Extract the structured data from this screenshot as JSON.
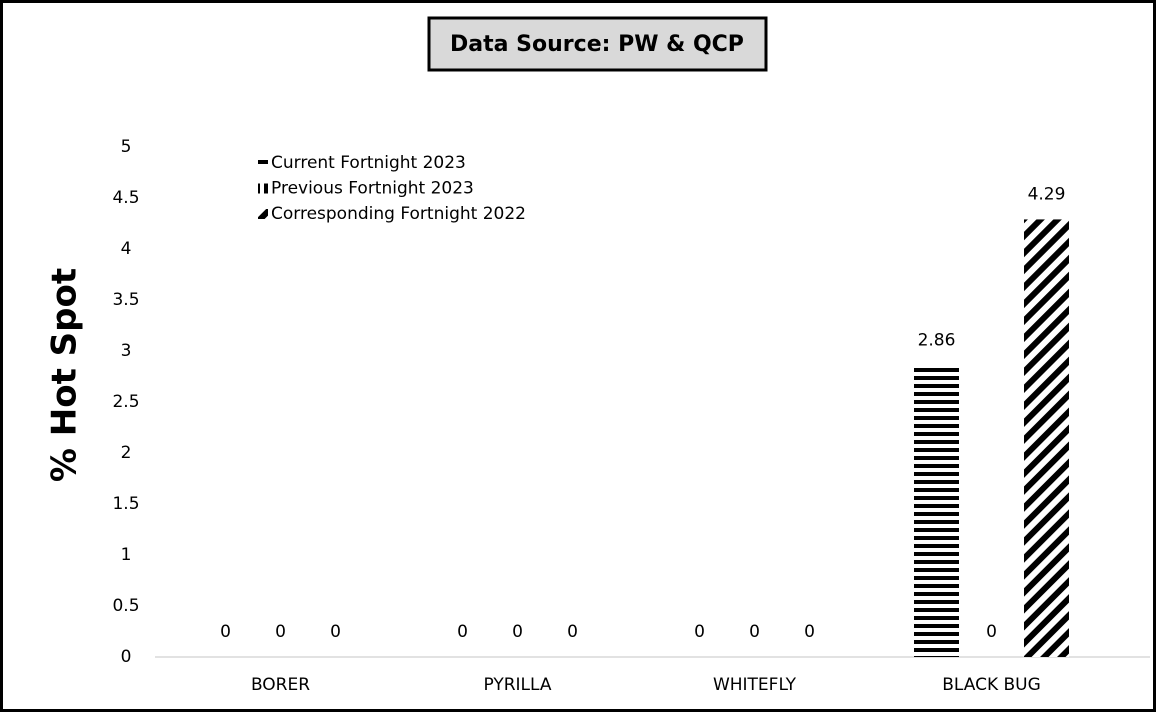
{
  "chart_data": {
    "type": "bar",
    "title": "Data Source: PW & QCP",
    "y_label": "% Hot Spot",
    "categories": [
      "BORER",
      "PYRILLA",
      "WHITEFLY",
      "BLACK BUG"
    ],
    "series": [
      {
        "name": "Current Fortnight 2023",
        "color": "#000000",
        "pattern": "horizontal",
        "values": [
          0,
          0,
          0,
          2.86
        ]
      },
      {
        "name": "Previous Fortnight 2023",
        "color": "#000000",
        "pattern": "vertical",
        "values": [
          0,
          0,
          0,
          0
        ]
      },
      {
        "name": "Corresponding Fortnight 2022",
        "color": "#000000",
        "pattern": "diagonal",
        "values": [
          0,
          0,
          0,
          4.29
        ]
      }
    ],
    "ylim": [
      0,
      5
    ],
    "yticks": [
      0,
      0.5,
      1,
      1.5,
      2,
      2.5,
      3,
      3.5,
      4,
      4.5,
      5
    ],
    "grid": false,
    "legend": "top-left"
  }
}
